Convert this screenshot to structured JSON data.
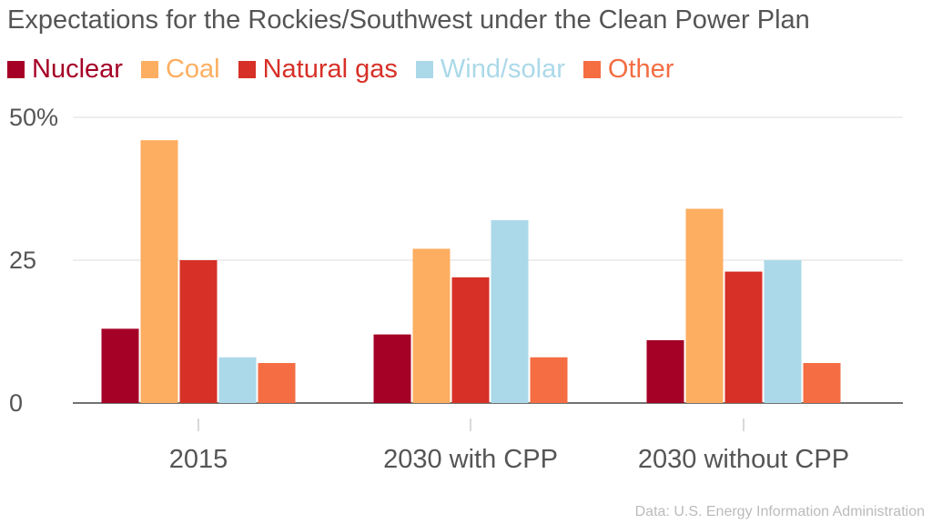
{
  "chart_data": {
    "type": "bar",
    "title": "Expectations for the Rockies/Southwest under the Clean Power Plan",
    "categories": [
      "2015",
      "2030 with CPP",
      "2030 without CPP"
    ],
    "series": [
      {
        "name": "Nuclear",
        "color": "#a50026",
        "values": [
          13,
          12,
          11
        ]
      },
      {
        "name": "Coal",
        "color": "#fdae61",
        "values": [
          46,
          27,
          34
        ]
      },
      {
        "name": "Natural gas",
        "color": "#d73027",
        "values": [
          25,
          22,
          23
        ]
      },
      {
        "name": "Wind/solar",
        "color": "#abd9e9",
        "values": [
          8,
          32,
          25
        ]
      },
      {
        "name": "Other",
        "color": "#f46d43",
        "values": [
          7,
          8,
          7
        ]
      }
    ],
    "yticks": [
      {
        "value": 0,
        "label": "0"
      },
      {
        "value": 25,
        "label": "25"
      },
      {
        "value": 50,
        "label": "50%"
      }
    ],
    "ylim": [
      0,
      50
    ],
    "grid": true,
    "legend_position": "top-left",
    "source": "Data: U.S. Energy Information Administration"
  }
}
